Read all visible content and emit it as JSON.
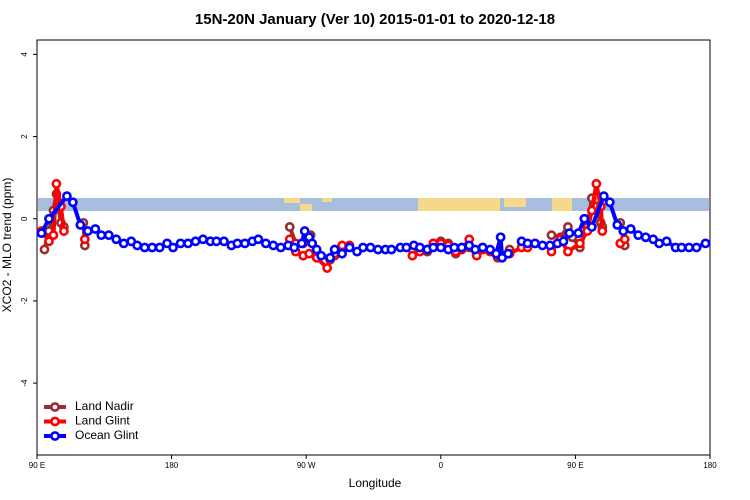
{
  "chart_data": {
    "type": "line",
    "title": "15N-20N January (Ver 10)   2015-01-01 to 2020-12-18",
    "x_label": "Longitude",
    "y_label": "XCO2 - MLO trend (ppm)",
    "xlim": [
      90,
      540
    ],
    "ylim": [
      -5.75,
      4.35
    ],
    "xticks": [
      {
        "value": 90,
        "label": "90 E"
      },
      180,
      {
        "value": 270,
        "label": "90 W"
      },
      {
        "value": 360,
        "label": "0"
      },
      {
        "value": 450,
        "label": "90 E"
      },
      180
    ],
    "yticks": [
      -4,
      -2,
      0,
      2,
      4
    ],
    "legend": "bottom-left",
    "series": [
      {
        "name": "Land Nadir",
        "color": "#9b2d30",
        "x": [
          95,
          98,
          101,
          103,
          106,
          108,
          null,
          121,
          122,
          null,
          259,
          263,
          268,
          273,
          277,
          286,
          289,
          294,
          null,
          341,
          346,
          351,
          355,
          360,
          365,
          370,
          374,
          379,
          384,
          388,
          398,
          406,
          null,
          434,
          440,
          445,
          448,
          453,
          458,
          461,
          464,
          467,
          468,
          null,
          480,
          483
        ],
        "values": [
          -0.75,
          -0.3,
          0.2,
          0.6,
          -0.1,
          -0.2,
          null,
          -0.1,
          -0.65,
          null,
          -0.2,
          -0.6,
          -0.6,
          -0.4,
          -0.85,
          -1.0,
          -0.9,
          -0.75,
          null,
          -0.75,
          -0.7,
          -0.8,
          -0.6,
          -0.55,
          -0.6,
          -0.85,
          -0.7,
          -0.7,
          -0.85,
          -0.7,
          -0.95,
          -0.75,
          null,
          -0.4,
          -0.45,
          -0.2,
          -0.45,
          -0.7,
          -0.2,
          0.5,
          0.3,
          -0.1,
          -0.2,
          null,
          -0.1,
          -0.65
        ]
      },
      {
        "name": "Land Glint",
        "color": "#ff0000",
        "x": [
          93,
          98,
          101,
          103,
          106,
          108,
          null,
          122,
          null,
          259,
          263,
          268,
          272,
          277,
          284,
          289,
          294,
          299,
          null,
          341,
          346,
          351,
          355,
          360,
          365,
          370,
          374,
          379,
          384,
          388,
          393,
          398,
          406,
          414,
          418,
          null,
          434,
          440,
          445,
          453,
          458,
          461,
          464,
          467,
          468,
          null,
          480,
          483
        ],
        "values": [
          -0.3,
          -0.55,
          -0.4,
          0.85,
          0.3,
          -0.3,
          null,
          -0.5,
          null,
          -0.5,
          -0.8,
          -0.9,
          -0.85,
          -0.95,
          -1.2,
          -0.85,
          -0.65,
          -0.65,
          null,
          -0.9,
          -0.8,
          -0.75,
          -0.6,
          -0.6,
          -0.65,
          -0.8,
          -0.75,
          -0.5,
          -0.9,
          -0.75,
          -0.8,
          -0.9,
          -0.85,
          -0.7,
          -0.7,
          null,
          -0.8,
          -0.5,
          -0.8,
          -0.6,
          -0.3,
          0.2,
          0.85,
          0.3,
          -0.3,
          null,
          -0.6,
          -0.5
        ]
      },
      {
        "name": "Ocean Glint",
        "color": "#0000ff",
        "x": [
          93,
          98,
          110,
          114,
          119,
          124,
          129,
          133,
          138,
          143,
          148,
          153,
          157,
          162,
          167,
          172,
          177,
          181,
          186,
          191,
          196,
          201,
          206,
          210,
          215,
          220,
          224,
          229,
          234,
          238,
          243,
          248,
          253,
          258,
          262,
          267,
          269,
          272,
          274,
          277,
          280,
          286,
          289,
          294,
          299,
          304,
          308,
          313,
          318,
          323,
          327,
          333,
          337,
          342,
          346,
          351,
          355,
          360,
          365,
          369,
          374,
          379,
          383,
          388,
          393,
          397,
          400,
          401,
          405,
          null,
          414,
          418,
          423,
          428,
          433,
          438,
          442,
          446,
          452,
          456,
          461,
          469,
          473,
          478,
          482,
          487,
          492,
          497,
          502,
          506,
          511,
          517,
          521,
          526,
          531,
          537
        ],
        "values": [
          -0.35,
          0.0,
          0.55,
          0.4,
          -0.15,
          -0.3,
          -0.25,
          -0.4,
          -0.4,
          -0.5,
          -0.6,
          -0.55,
          -0.65,
          -0.7,
          -0.7,
          -0.7,
          -0.6,
          -0.7,
          -0.6,
          -0.6,
          -0.55,
          -0.5,
          -0.55,
          -0.55,
          -0.55,
          -0.65,
          -0.6,
          -0.6,
          -0.55,
          -0.5,
          -0.6,
          -0.65,
          -0.7,
          -0.65,
          -0.7,
          -0.6,
          -0.3,
          -0.45,
          -0.6,
          -0.75,
          -0.9,
          -0.95,
          -0.75,
          -0.85,
          -0.7,
          -0.8,
          -0.7,
          -0.7,
          -0.75,
          -0.75,
          -0.75,
          -0.7,
          -0.7,
          -0.65,
          -0.7,
          -0.75,
          -0.7,
          -0.7,
          -0.75,
          -0.7,
          -0.7,
          -0.65,
          -0.75,
          -0.7,
          -0.75,
          -0.85,
          -0.45,
          -0.95,
          -0.85,
          null,
          -0.55,
          -0.6,
          -0.6,
          -0.65,
          -0.65,
          -0.6,
          -0.55,
          -0.35,
          -0.35,
          0.0,
          -0.2,
          0.55,
          0.4,
          -0.15,
          -0.3,
          -0.25,
          -0.4,
          -0.45,
          -0.5,
          -0.6,
          -0.55,
          -0.7,
          -0.7,
          -0.7,
          -0.7,
          -0.6
        ]
      }
    ]
  }
}
